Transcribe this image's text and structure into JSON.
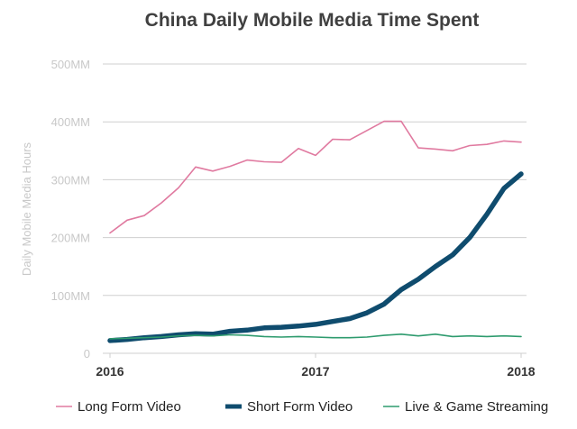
{
  "chart_data": {
    "type": "line",
    "title": "China Daily Mobile Media Time Spent",
    "xlabel": "",
    "ylabel": "Daily Mobile Media Hours",
    "ylim": [
      0,
      500
    ],
    "y_ticks": [
      {
        "value": 0,
        "label": "0"
      },
      {
        "value": 100,
        "label": "100MM"
      },
      {
        "value": 200,
        "label": "200MM"
      },
      {
        "value": 300,
        "label": "300MM"
      },
      {
        "value": 400,
        "label": "400MM"
      },
      {
        "value": 500,
        "label": "500MM"
      }
    ],
    "xlim": [
      0,
      24
    ],
    "x_ticks": [
      {
        "value": 0,
        "label": "2016"
      },
      {
        "value": 12,
        "label": "2017"
      },
      {
        "value": 24,
        "label": "2018"
      }
    ],
    "x": [
      0,
      1,
      2,
      3,
      4,
      5,
      6,
      7,
      8,
      9,
      10,
      11,
      12,
      13,
      14,
      15,
      16,
      17,
      18,
      19,
      20,
      21,
      22,
      23,
      24
    ],
    "series": [
      {
        "name": "Long Form Video",
        "color": "#e07aa0",
        "weight": "thin",
        "values": [
          208,
          230,
          238,
          260,
          286,
          322,
          315,
          323,
          334,
          331,
          330,
          354,
          342,
          370,
          369,
          385,
          401,
          401,
          355,
          353,
          350,
          359,
          361,
          367,
          365
        ]
      },
      {
        "name": "Short Form Video",
        "color": "#0f4c6e",
        "weight": "thick",
        "values": [
          22,
          24,
          27,
          29,
          32,
          34,
          33,
          38,
          40,
          44,
          45,
          47,
          50,
          55,
          60,
          70,
          85,
          110,
          128,
          150,
          170,
          200,
          240,
          285,
          310
        ]
      },
      {
        "name": "Live & Game Streaming",
        "color": "#2e9b6e",
        "weight": "thin",
        "values": [
          25,
          26,
          27,
          28,
          30,
          31,
          30,
          32,
          31,
          29,
          28,
          29,
          28,
          27,
          27,
          28,
          31,
          33,
          30,
          33,
          29,
          30,
          29,
          30,
          29
        ]
      }
    ],
    "legend_position": "bottom",
    "grid": true
  }
}
